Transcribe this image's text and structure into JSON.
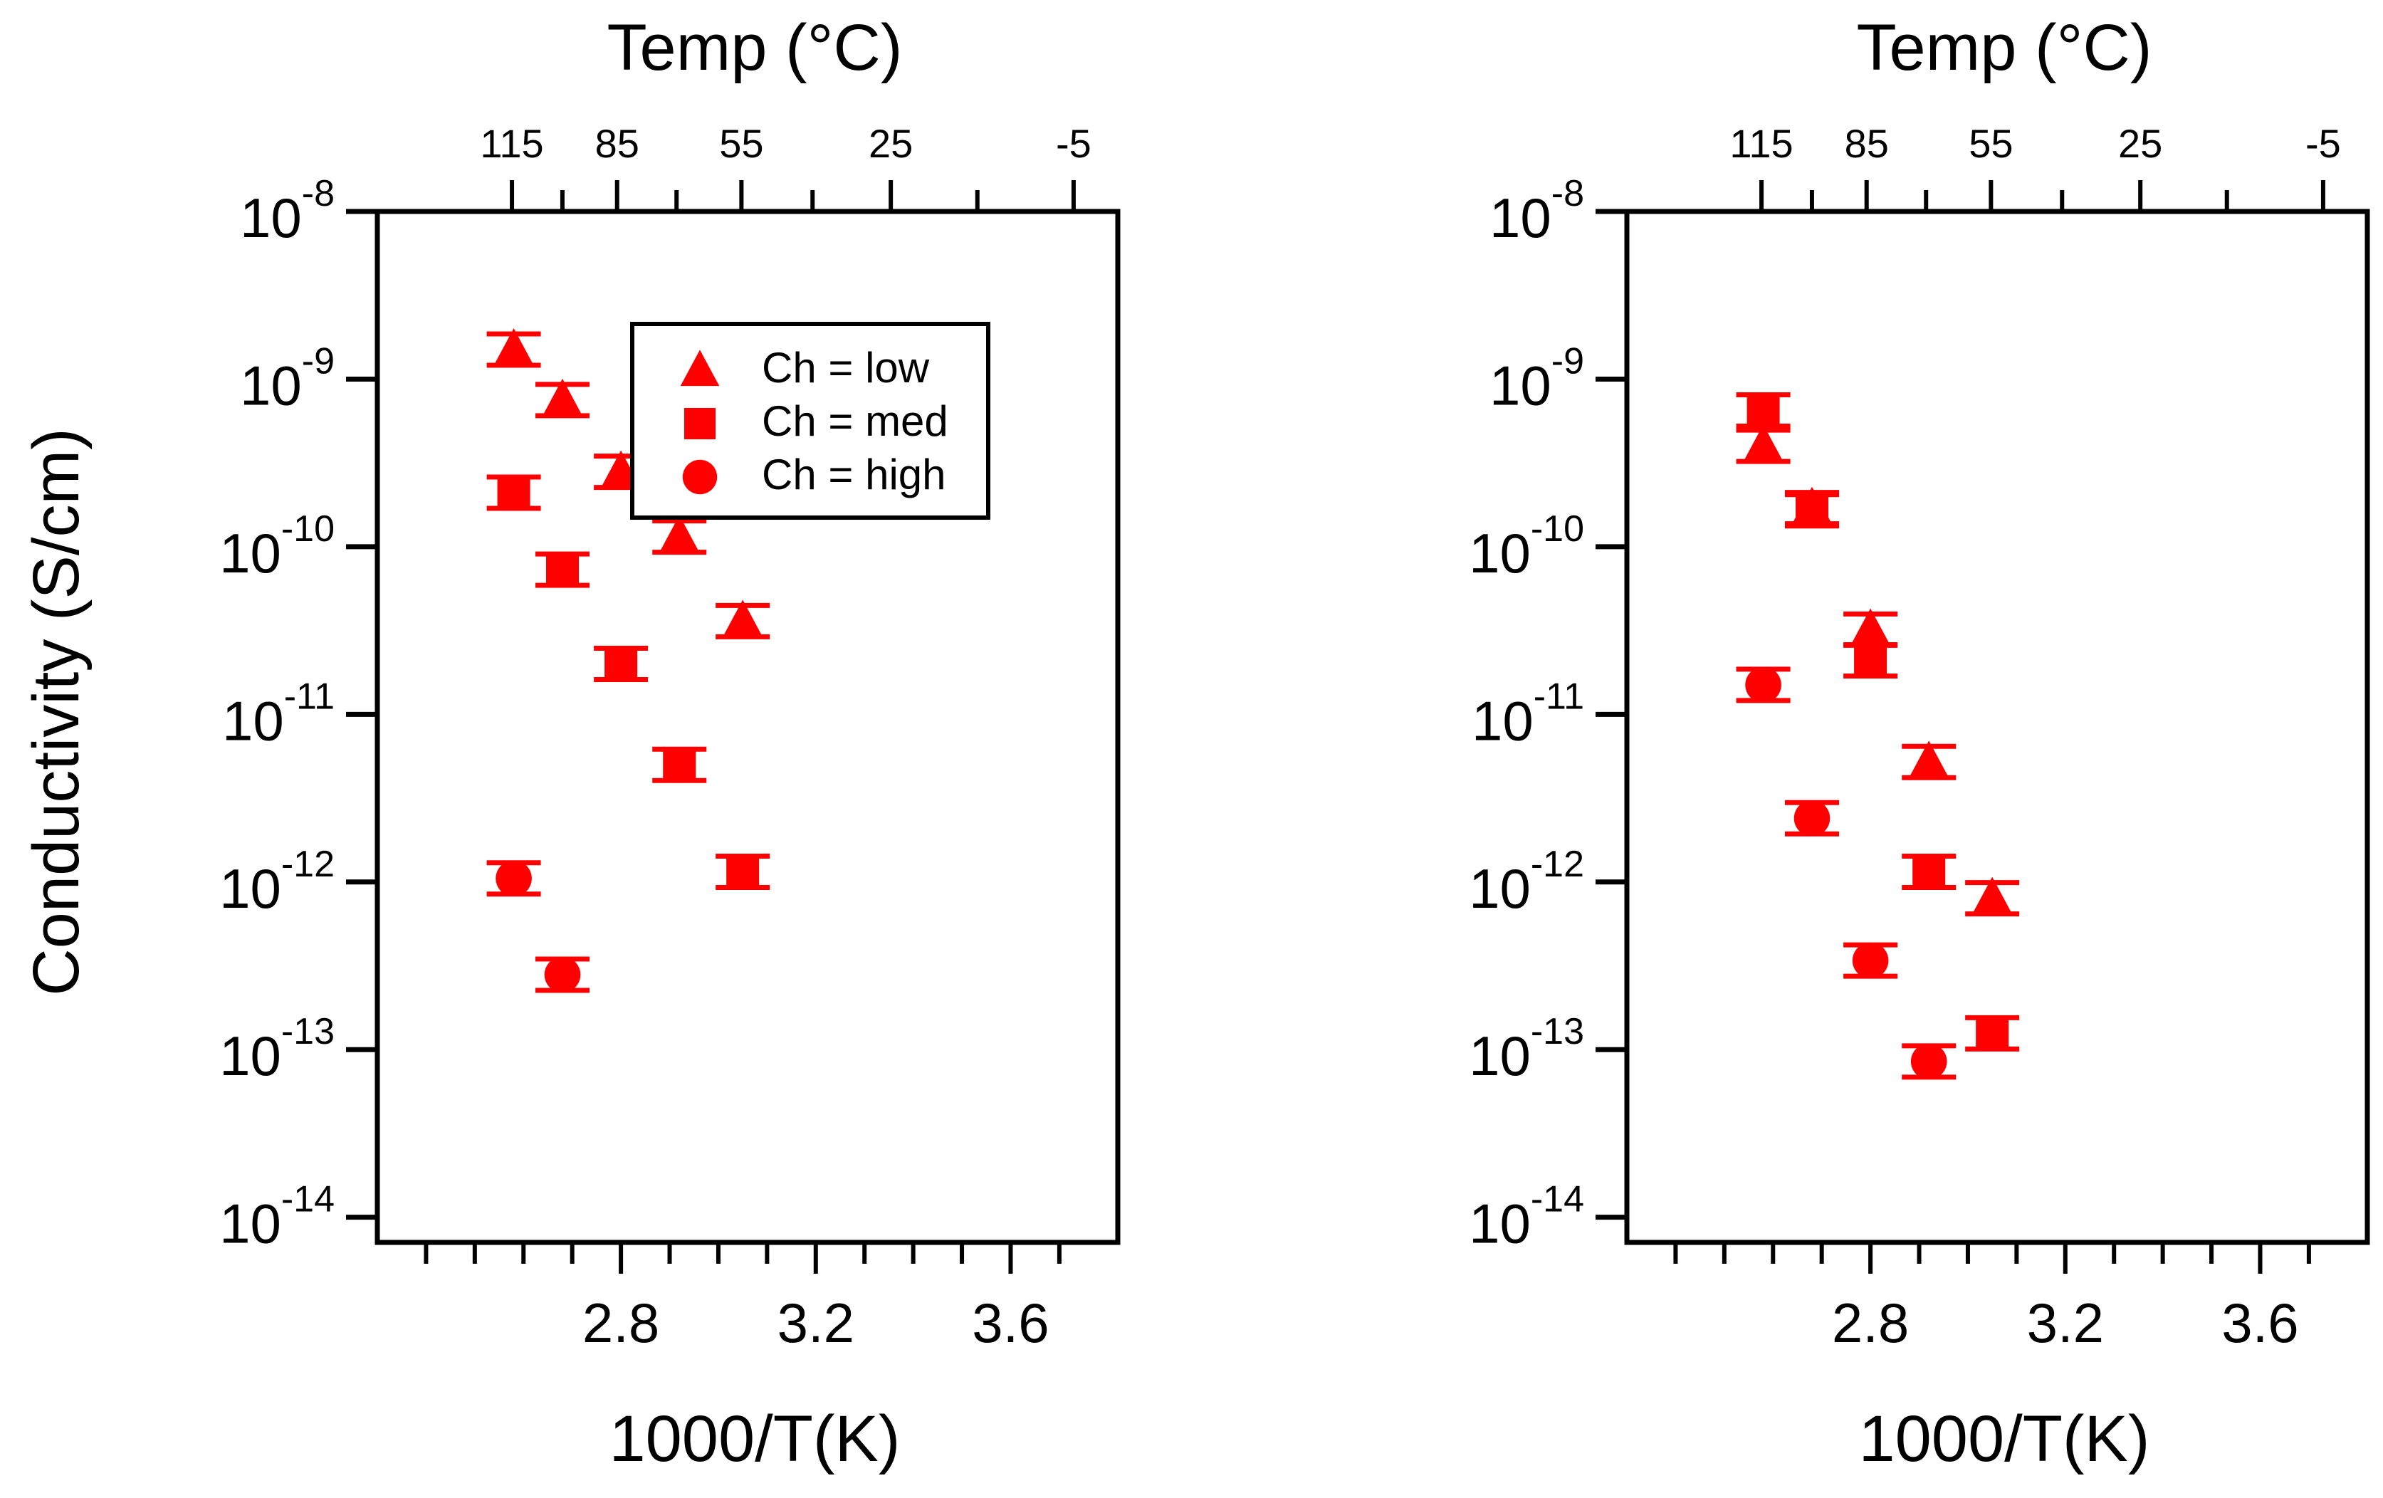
{
  "chart_data": [
    {
      "type": "scatter",
      "title": "",
      "xlabel": "1000/T(K)",
      "ylabel": "Conductivity (S/cm)",
      "x2label": "Temp (°C)",
      "xlim": [
        2.3,
        3.82
      ],
      "ylim_log10": [
        -14.15,
        -8
      ],
      "yscale": "log",
      "xticks": [
        {
          "value": 2.8,
          "label": "2.8"
        },
        {
          "value": 3.2,
          "label": "3.2"
        },
        {
          "value": 3.6,
          "label": "3.6"
        }
      ],
      "yticks": [
        {
          "exponent": -8,
          "base": "10",
          "exp_label": "-8"
        },
        {
          "exponent": -9,
          "base": "10",
          "exp_label": "-9"
        },
        {
          "exponent": -10,
          "base": "10",
          "exp_label": "-10"
        },
        {
          "exponent": -11,
          "base": "10",
          "exp_label": "-11"
        },
        {
          "exponent": -12,
          "base": "10",
          "exp_label": "-12"
        },
        {
          "exponent": -13,
          "base": "10",
          "exp_label": "-13"
        },
        {
          "exponent": -14,
          "base": "10",
          "exp_label": "-14"
        }
      ],
      "top_ticks": [
        {
          "celsius": 115,
          "label": "115"
        },
        {
          "celsius": 85,
          "label": "85"
        },
        {
          "celsius": 55,
          "label": "55"
        },
        {
          "celsius": 25,
          "label": "25"
        },
        {
          "celsius": -5,
          "label": "-5"
        }
      ],
      "legend": {
        "placement": "top-center",
        "entries": [
          {
            "marker": "triangle",
            "label": "Ch = low"
          },
          {
            "marker": "square",
            "label": "Ch = med"
          },
          {
            "marker": "circle",
            "label": "Ch = high"
          }
        ]
      },
      "series": [
        {
          "name": "Ch = low",
          "marker": "triangle",
          "color": "#ff0000",
          "x": [
            2.58,
            2.68,
            2.8,
            2.92,
            3.05
          ],
          "y": [
            1.5e-09,
            7.5e-10,
            2.8e-10,
            1.15e-10,
            3.6e-11
          ]
        },
        {
          "name": "Ch = med",
          "marker": "square",
          "color": "#ff0000",
          "x": [
            2.58,
            2.68,
            2.8,
            2.92,
            3.05
          ],
          "y": [
            2.1e-10,
            7.3e-11,
            2e-11,
            5e-12,
            1.15e-12
          ]
        },
        {
          "name": "Ch = high",
          "marker": "circle",
          "color": "#ff0000",
          "x": [
            2.58,
            2.68
          ],
          "y": [
            1.05e-12,
            2.8e-13
          ]
        }
      ]
    },
    {
      "type": "scatter",
      "title": "",
      "xlabel": "1000/T(K)",
      "ylabel": "",
      "x2label": "Temp (°C)",
      "xlim": [
        2.3,
        3.82
      ],
      "ylim_log10": [
        -14.15,
        -8
      ],
      "yscale": "log",
      "xticks": [
        {
          "value": 2.8,
          "label": "2.8"
        },
        {
          "value": 3.2,
          "label": "3.2"
        },
        {
          "value": 3.6,
          "label": "3.6"
        }
      ],
      "yticks": [
        {
          "exponent": -8,
          "base": "10",
          "exp_label": "-8"
        },
        {
          "exponent": -9,
          "base": "10",
          "exp_label": "-9"
        },
        {
          "exponent": -10,
          "base": "10",
          "exp_label": "-10"
        },
        {
          "exponent": -11,
          "base": "10",
          "exp_label": "-11"
        },
        {
          "exponent": -12,
          "base": "10",
          "exp_label": "-12"
        },
        {
          "exponent": -13,
          "base": "10",
          "exp_label": "-13"
        },
        {
          "exponent": -14,
          "base": "10",
          "exp_label": "-14"
        }
      ],
      "top_ticks": [
        {
          "celsius": 115,
          "label": "115"
        },
        {
          "celsius": 85,
          "label": "85"
        },
        {
          "celsius": 55,
          "label": "55"
        },
        {
          "celsius": 25,
          "label": "25"
        },
        {
          "celsius": -5,
          "label": "-5"
        }
      ],
      "series": [
        {
          "name": "Ch = low",
          "marker": "triangle",
          "color": "#ff0000",
          "x": [
            2.58,
            2.68,
            2.8,
            2.92,
            3.05
          ],
          "y": [
            4e-10,
            1.7e-10,
            3.2e-11,
            5.2e-12,
            8e-13
          ]
        },
        {
          "name": "Ch = med",
          "marker": "square",
          "color": "#ff0000",
          "x": [
            2.58,
            2.68,
            2.8,
            2.92,
            3.05
          ],
          "y": [
            6.5e-10,
            1.65e-10,
            2.1e-11,
            1.15e-12,
            1.25e-13
          ]
        },
        {
          "name": "Ch = high",
          "marker": "circle",
          "color": "#ff0000",
          "x": [
            2.58,
            2.68,
            2.8,
            2.92
          ],
          "y": [
            1.5e-11,
            2.4e-12,
            3.4e-13,
            8.5e-14
          ]
        }
      ]
    }
  ]
}
